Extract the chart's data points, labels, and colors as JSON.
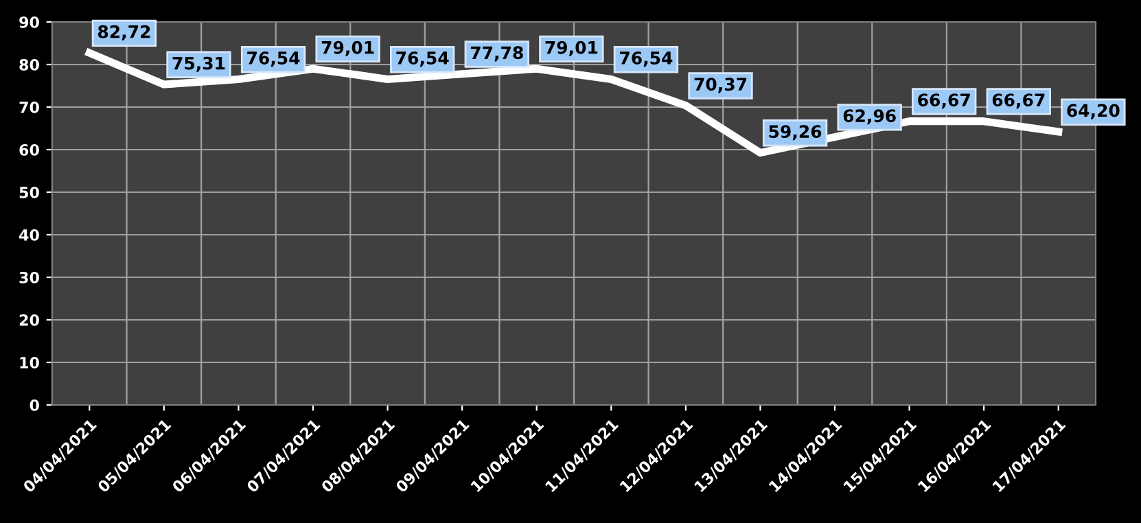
{
  "chart_data": {
    "type": "line",
    "categories": [
      "04/04/2021",
      "05/04/2021",
      "06/04/2021",
      "07/04/2021",
      "08/04/2021",
      "09/04/2021",
      "10/04/2021",
      "11/04/2021",
      "12/04/2021",
      "13/04/2021",
      "14/04/2021",
      "15/04/2021",
      "16/04/2021",
      "17/04/2021"
    ],
    "series": [
      {
        "color": "#ffffff",
        "values": [
          82.72,
          75.31,
          76.54,
          79.01,
          76.54,
          77.78,
          79.01,
          76.54,
          70.37,
          59.26,
          62.96,
          66.67,
          66.67,
          64.2
        ],
        "value_labels": [
          "82,72",
          "75,31",
          "76,54",
          "79,01",
          "76,54",
          "77,78",
          "79,01",
          "76,54",
          "70,37",
          "59,26",
          "62,96",
          "66,67",
          "66,67",
          "64,20"
        ]
      }
    ],
    "ylim": [
      0,
      90
    ],
    "yticks": [
      0,
      10,
      20,
      30,
      40,
      50,
      60,
      70,
      80,
      90
    ],
    "grid": true,
    "legend": false,
    "marker": "none",
    "line_style": "solid"
  }
}
